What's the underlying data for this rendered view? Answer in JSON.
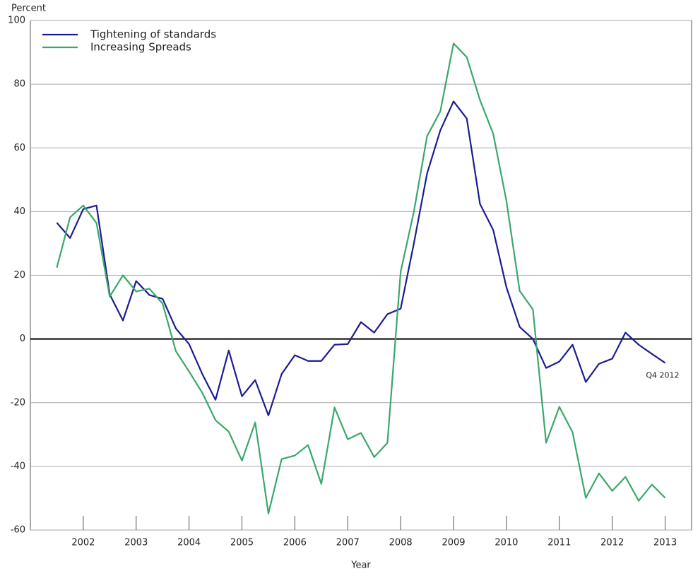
{
  "chart_data": {
    "type": "line",
    "y_axis_label": "Percent",
    "x_axis_label": "Year",
    "annotation": "Q4 2012",
    "x": [
      2001.5,
      2001.75,
      2002,
      2002.25,
      2002.5,
      2002.75,
      2003,
      2003.25,
      2003.5,
      2003.75,
      2004,
      2004.25,
      2004.5,
      2004.75,
      2005,
      2005.25,
      2005.5,
      2005.75,
      2006,
      2006.25,
      2006.5,
      2006.75,
      2007,
      2007.25,
      2007.5,
      2007.75,
      2008,
      2008.25,
      2008.5,
      2008.75,
      2009,
      2009.25,
      2009.5,
      2009.75,
      2010,
      2010.25,
      2010.5,
      2010.75,
      2011,
      2011.25,
      2011.5,
      2011.75,
      2012,
      2012.25,
      2012.5,
      2012.75,
      2013
    ],
    "series": [
      {
        "name": "Tightening of standards",
        "color": "#1c1c94",
        "values": [
          36.5,
          31.7,
          40.8,
          41.9,
          14,
          5.8,
          18.2,
          13.8,
          12.6,
          3.3,
          -1.6,
          -11,
          -19.1,
          -3.6,
          -18,
          -12.9,
          -24,
          -11,
          -5.1,
          -6.9,
          -6.9,
          -1.8,
          -1.6,
          5.3,
          2,
          7.8,
          9.5,
          30,
          52,
          65.5,
          74.6,
          69.2,
          42.4,
          34.2,
          16.2,
          3.8,
          0,
          -9.1,
          -7.1,
          -1.8,
          -13.5,
          -7.8,
          -6.2,
          2,
          -1.8,
          -4.7,
          -7.5
        ]
      },
      {
        "name": "Increasing Spreads",
        "color": "#3aa86b",
        "values": [
          22.4,
          38.2,
          41.9,
          36.4,
          13.3,
          20,
          14.9,
          15.8,
          11.1,
          -3.8,
          -10.2,
          -16.9,
          -25.5,
          -29.1,
          -38.2,
          -26.2,
          -54.8,
          -37.7,
          -36.6,
          -33.3,
          -45.5,
          -21.5,
          -31.5,
          -29.5,
          -37.1,
          -32.6,
          21.1,
          40,
          63.7,
          71.5,
          92.8,
          88.5,
          75,
          64.4,
          43.3,
          15.1,
          9.3,
          -32.6,
          -21.3,
          -29.3,
          -49.9,
          -42.2,
          -47.7,
          -43.3,
          -50.8,
          -45.7,
          -49.9
        ]
      }
    ],
    "xlim": [
      2001,
      2013.5
    ],
    "xticks": [
      2002,
      2003,
      2004,
      2005,
      2006,
      2007,
      2008,
      2009,
      2010,
      2011,
      2012,
      2013
    ],
    "ylim": [
      -60,
      100
    ],
    "yticks": [
      -60,
      -40,
      -20,
      0,
      20,
      40,
      60,
      80,
      100
    ],
    "grid": true,
    "legend": "top-left"
  }
}
